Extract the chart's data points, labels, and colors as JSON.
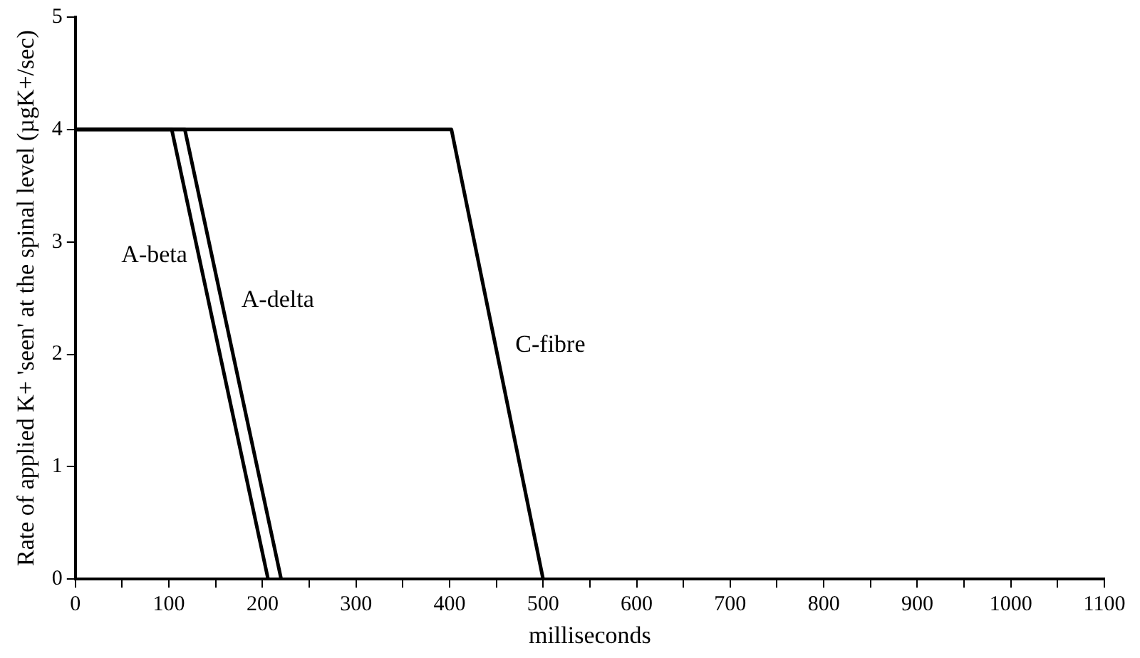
{
  "chart_data": {
    "type": "line",
    "xlabel": "milliseconds",
    "ylabel": "Rate of applied K+ 'seen' at the spinal level (µgK+/sec)",
    "series": [
      {
        "name": "A-beta",
        "color": "#000000",
        "x": [
          0,
          103,
          206
        ],
        "values": [
          4,
          4,
          0
        ]
      },
      {
        "name": "A-delta",
        "color": "#000000",
        "x": [
          0,
          117,
          220
        ],
        "values": [
          4,
          4,
          0
        ]
      },
      {
        "name": "C-fibre",
        "color": "#000000",
        "x": [
          0,
          402,
          500
        ],
        "values": [
          4,
          4,
          0
        ]
      }
    ],
    "xlim": [
      0,
      1100
    ],
    "xticks": [
      0,
      {
        "value": 50,
        "label": null
      },
      100,
      {
        "value": 150,
        "label": null
      },
      200,
      {
        "value": 250,
        "label": null
      },
      300,
      {
        "value": 350,
        "label": null
      },
      400,
      {
        "value": 450,
        "label": null
      },
      500,
      {
        "value": 550,
        "label": null
      },
      600,
      {
        "value": 650,
        "label": null
      },
      700,
      {
        "value": 750,
        "label": null
      },
      800,
      {
        "value": 850,
        "label": null
      },
      900,
      {
        "value": 950,
        "label": null
      },
      1000,
      {
        "value": 1050,
        "label": null
      },
      1100
    ],
    "ylim": [
      0,
      5
    ],
    "yticks": [
      0,
      1,
      2,
      3,
      4,
      5
    ],
    "grid": false,
    "legend": false,
    "marker": "none",
    "line_style": "solid"
  }
}
